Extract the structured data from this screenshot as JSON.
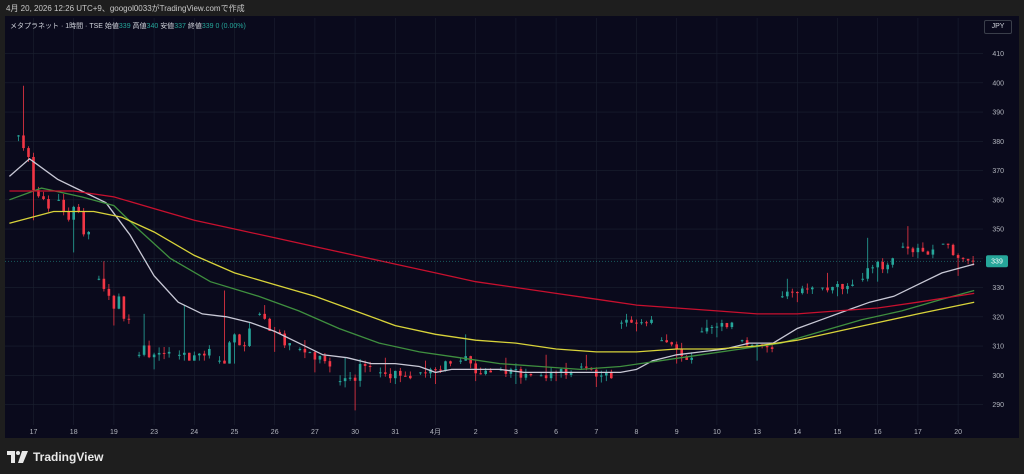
{
  "header": {
    "caption": "4月 20, 2026 12:26 UTC+9、googol0033がTradingView.comで作成"
  },
  "legend": {
    "symbol": "メタプラネット · 1時間 · TSE",
    "open_label": "始値",
    "open": "339",
    "high_label": "高値",
    "high": "340",
    "low_label": "安値",
    "low": "337",
    "close_label": "終値",
    "close": "339",
    "change": "0 (0.00%)"
  },
  "currency_button": "JPY",
  "last_price_label": "339",
  "footer": {
    "brand": "TradingView"
  },
  "colors": {
    "up": "#26a69a",
    "down": "#f23645",
    "ma_fast": "#c9c9d6",
    "ma_mid": "#3f8f3f",
    "ma_slow": "#d8d33a",
    "ma_long": "#c8102e",
    "background": "#0a0a1c",
    "grid": "#1b2030"
  },
  "chart_data": {
    "type": "candlestick",
    "timeframe": "1時間",
    "ylim": [
      283,
      416
    ],
    "y_ticks": [
      290,
      300,
      310,
      320,
      330,
      340,
      350,
      360,
      370,
      380,
      390,
      400,
      410
    ],
    "x_ticks": [
      "17",
      "18",
      "19",
      "23",
      "24",
      "25",
      "26",
      "27",
      "30",
      "31",
      "4月",
      "2",
      "3",
      "6",
      "7",
      "8",
      "9",
      "10",
      "13",
      "14",
      "15",
      "16",
      "17",
      "20"
    ],
    "session_opens": [
      [
        0,
        382
      ],
      [
        1,
        360
      ],
      [
        2,
        308
      ],
      [
        3,
        307
      ],
      [
        4,
        307
      ],
      [
        5,
        305
      ],
      [
        6,
        306
      ],
      [
        7,
        309
      ],
      [
        8,
        298
      ],
      [
        9,
        301
      ],
      [
        10,
        301
      ],
      [
        11,
        302
      ],
      [
        12,
        304
      ],
      [
        13,
        304
      ],
      [
        14,
        303
      ],
      [
        15,
        318
      ],
      [
        16,
        312
      ],
      [
        17,
        312
      ],
      [
        18,
        312
      ],
      [
        19,
        327
      ],
      [
        20,
        332
      ],
      [
        21,
        333
      ],
      [
        22,
        345
      ],
      [
        23,
        345
      ]
    ],
    "daily": [
      {
        "day": "17",
        "o": 382,
        "h": 399,
        "c": 357,
        "l": 353
      },
      {
        "day": "18",
        "o": 360,
        "h": 362,
        "c": 349,
        "l": 342
      },
      {
        "day": "19",
        "o": 333,
        "h": 339,
        "c": 319,
        "l": 317
      },
      {
        "day": "23",
        "o": 307,
        "h": 321,
        "c": 308,
        "l": 302
      },
      {
        "day": "24",
        "o": 307,
        "h": 324,
        "c": 309,
        "l": 305
      },
      {
        "day": "25",
        "o": 305,
        "h": 329,
        "c": 316,
        "l": 304
      },
      {
        "day": "26",
        "o": 321,
        "h": 324,
        "c": 311,
        "l": 308
      },
      {
        "day": "27",
        "o": 309,
        "h": 312,
        "c": 303,
        "l": 301
      },
      {
        "day": "30",
        "o": 298,
        "h": 306,
        "c": 303,
        "l": 288
      },
      {
        "day": "31",
        "o": 301,
        "h": 306,
        "c": 299,
        "l": 297
      },
      {
        "day": "4月",
        "o": 301,
        "h": 305,
        "c": 304,
        "l": 297
      },
      {
        "day": "2",
        "o": 305,
        "h": 314,
        "c": 301,
        "l": 298
      },
      {
        "day": "3",
        "o": 302,
        "h": 306,
        "c": 300,
        "l": 297
      },
      {
        "day": "6",
        "o": 300,
        "h": 307,
        "c": 301,
        "l": 298
      },
      {
        "day": "7",
        "o": 303,
        "h": 307,
        "c": 299,
        "l": 296
      },
      {
        "day": "8",
        "o": 318,
        "h": 321,
        "c": 319,
        "l": 315
      },
      {
        "day": "9",
        "o": 312,
        "h": 314,
        "c": 306,
        "l": 304
      },
      {
        "day": "10",
        "o": 315,
        "h": 319,
        "c": 318,
        "l": 313
      },
      {
        "day": "13",
        "o": 312,
        "h": 313,
        "c": 309,
        "l": 305
      },
      {
        "day": "14",
        "o": 327,
        "h": 333,
        "c": 330,
        "l": 325
      },
      {
        "day": "15",
        "o": 330,
        "h": 335,
        "c": 331,
        "l": 327
      },
      {
        "day": "16",
        "o": 333,
        "h": 347,
        "c": 340,
        "l": 332
      },
      {
        "day": "17",
        "o": 344,
        "h": 351,
        "c": 343,
        "l": 340
      },
      {
        "day": "20",
        "o": 345,
        "h": 345,
        "c": 339,
        "l": 334
      }
    ],
    "series": [
      {
        "name": "",
        "color": "#c9c9d6",
        "points": [
          [
            -0.6,
            368
          ],
          [
            -0.1,
            374
          ],
          [
            0.6,
            367
          ],
          [
            1.2,
            363
          ],
          [
            1.8,
            359
          ],
          [
            2.4,
            348
          ],
          [
            3,
            334
          ],
          [
            3.6,
            325
          ],
          [
            4.2,
            321
          ],
          [
            4.8,
            320
          ],
          [
            5.4,
            318
          ],
          [
            6,
            315
          ],
          [
            6.6,
            311
          ],
          [
            7.2,
            307
          ],
          [
            7.8,
            306
          ],
          [
            8.4,
            304
          ],
          [
            9,
            304
          ],
          [
            9.6,
            303
          ],
          [
            10,
            301
          ],
          [
            10.4,
            302
          ],
          [
            11,
            302
          ],
          [
            11.6,
            302
          ],
          [
            12.2,
            301
          ],
          [
            12.8,
            301
          ],
          [
            13.4,
            301
          ],
          [
            14,
            301
          ],
          [
            14.6,
            301
          ],
          [
            15,
            302
          ],
          [
            15.4,
            305
          ],
          [
            16,
            307
          ],
          [
            16.6,
            308
          ],
          [
            17.2,
            309
          ],
          [
            17.8,
            311
          ],
          [
            18.4,
            311
          ],
          [
            19,
            316
          ],
          [
            19.6,
            319
          ],
          [
            20.2,
            322
          ],
          [
            20.8,
            325
          ],
          [
            21.4,
            327
          ],
          [
            22,
            331
          ],
          [
            22.6,
            335
          ],
          [
            23.4,
            338
          ]
        ]
      },
      {
        "name": "",
        "color": "#3f8f3f",
        "points": [
          [
            -0.6,
            360
          ],
          [
            0.2,
            364
          ],
          [
            1.2,
            361
          ],
          [
            2,
            358
          ],
          [
            2.6,
            350
          ],
          [
            3.4,
            340
          ],
          [
            4.4,
            332
          ],
          [
            5.6,
            327
          ],
          [
            6.6,
            322
          ],
          [
            7.6,
            316
          ],
          [
            8.6,
            311
          ],
          [
            9.6,
            308
          ],
          [
            10.6,
            306
          ],
          [
            11.6,
            304
          ],
          [
            12.6,
            303
          ],
          [
            13.6,
            302
          ],
          [
            14.6,
            303
          ],
          [
            15.6,
            305
          ],
          [
            16.6,
            307
          ],
          [
            17.6,
            309
          ],
          [
            18.6,
            311
          ],
          [
            19.6,
            315
          ],
          [
            20.6,
            319
          ],
          [
            21.6,
            322
          ],
          [
            22.6,
            326
          ],
          [
            23.4,
            329
          ]
        ]
      },
      {
        "name": "",
        "color": "#d8d33a",
        "points": [
          [
            -0.6,
            352
          ],
          [
            0.5,
            356
          ],
          [
            1.5,
            356
          ],
          [
            2.2,
            354
          ],
          [
            3,
            349
          ],
          [
            4,
            341
          ],
          [
            5,
            335
          ],
          [
            6,
            331
          ],
          [
            7,
            327
          ],
          [
            8,
            322
          ],
          [
            9,
            317
          ],
          [
            10,
            314
          ],
          [
            11,
            312
          ],
          [
            12,
            311
          ],
          [
            13,
            309
          ],
          [
            14,
            308
          ],
          [
            15,
            308
          ],
          [
            16,
            309
          ],
          [
            17,
            309
          ],
          [
            18,
            310
          ],
          [
            19,
            312
          ],
          [
            20,
            315
          ],
          [
            21,
            318
          ],
          [
            22,
            321
          ],
          [
            23.4,
            325
          ]
        ]
      },
      {
        "name": "",
        "color": "#c8102e",
        "points": [
          [
            -0.6,
            363
          ],
          [
            1,
            363
          ],
          [
            2,
            361
          ],
          [
            3,
            357
          ],
          [
            4,
            353
          ],
          [
            5,
            350
          ],
          [
            6,
            347
          ],
          [
            7,
            344
          ],
          [
            8,
            341
          ],
          [
            9,
            338
          ],
          [
            10,
            335
          ],
          [
            11,
            332
          ],
          [
            12,
            330
          ],
          [
            13,
            328
          ],
          [
            14,
            326
          ],
          [
            15,
            324
          ],
          [
            16,
            323
          ],
          [
            17,
            322
          ],
          [
            18,
            321
          ],
          [
            19,
            321
          ],
          [
            20,
            322
          ],
          [
            21,
            323
          ],
          [
            22,
            325
          ],
          [
            23.4,
            328
          ]
        ]
      }
    ]
  }
}
